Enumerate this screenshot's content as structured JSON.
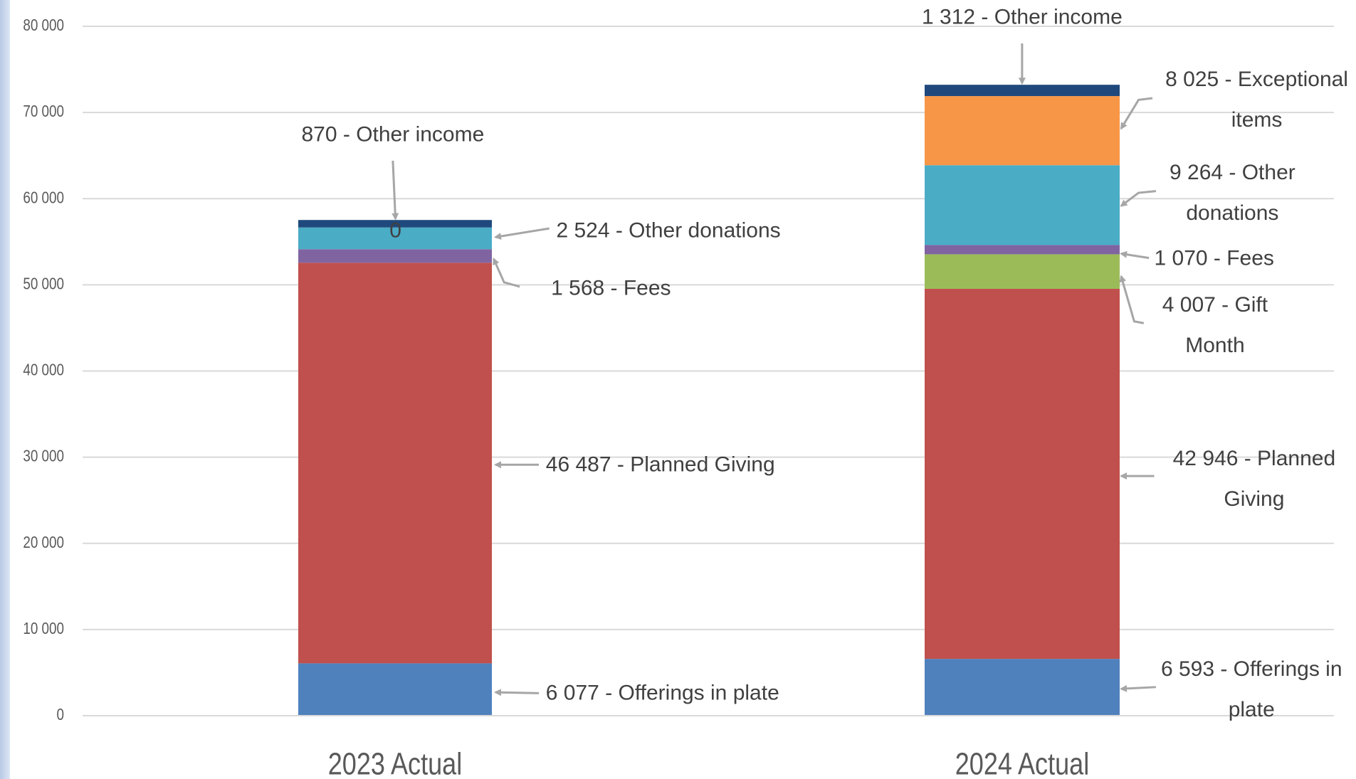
{
  "chart_data": {
    "type": "stacked_bar",
    "categories": [
      "2023 Actual",
      "2024 Actual"
    ],
    "ylim": [
      0,
      80000
    ],
    "yticks": [
      0,
      {
        "value": 10000,
        "label": "10 000"
      },
      {
        "value": 20000,
        "label": "20 000"
      },
      {
        "value": 30000,
        "label": "30 000"
      },
      {
        "value": 40000,
        "label": "40 000"
      },
      {
        "value": 50000,
        "label": "50 000"
      },
      {
        "value": 60000,
        "label": "60 000"
      },
      {
        "value": 70000,
        "label": "70 000"
      },
      {
        "value": 80000,
        "label": "80 000"
      }
    ],
    "grid": true,
    "series": [
      {
        "name": "Offerings in plate",
        "color": "#4f81bd",
        "values": [
          6077,
          6593
        ],
        "value_labels": [
          "6 077 - Offerings in plate",
          "6 593 - Offerings in plate"
        ]
      },
      {
        "name": "Planned Giving",
        "color": "#c0504d",
        "values": [
          46487,
          42946
        ],
        "value_labels": [
          "46 487 - Planned Giving",
          "42 946 - Planned Giving"
        ]
      },
      {
        "name": "Gift Month",
        "color": "#9bbb59",
        "values": [
          null,
          4007
        ],
        "value_labels": [
          null,
          "4 007 - Gift Month"
        ]
      },
      {
        "name": "Fees",
        "color": "#8064a2",
        "values": [
          1568,
          1070
        ],
        "value_labels": [
          "1 568 - Fees",
          "1 070 - Fees"
        ]
      },
      {
        "name": "Other donations",
        "color": "#4bacc6",
        "values": [
          2524,
          9264
        ],
        "value_labels": [
          "2 524 - Other donations",
          "9 264 - Other donations"
        ]
      },
      {
        "name": "Exceptional items",
        "color": "#f79646",
        "values": [
          0,
          8025
        ],
        "value_labels": [
          "0",
          "8 025 - Exceptional items"
        ]
      },
      {
        "name": "Other income",
        "color": "#1f497d",
        "values": [
          870,
          1312
        ],
        "value_labels": [
          "870 - Other income",
          "1 312 - Other income"
        ]
      }
    ]
  }
}
